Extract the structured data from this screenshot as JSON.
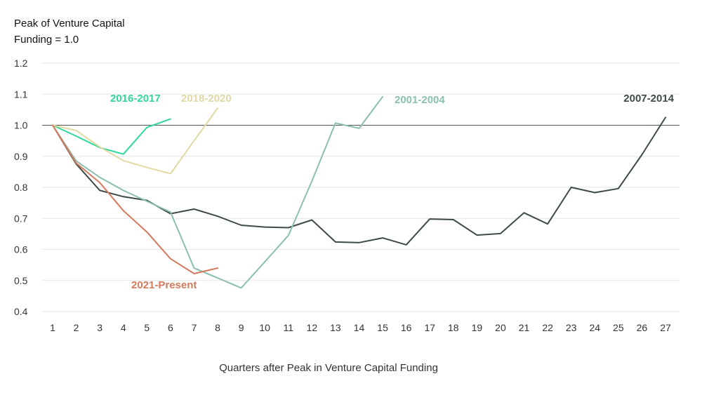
{
  "chart_data": {
    "type": "line",
    "ylabel_line1": "Peak of Venture Capital",
    "ylabel_line2": "Funding = 1.0",
    "xlabel": "Quarters after Peak in Venture Capital Funding",
    "x_ticks": [
      "1",
      "2",
      "3",
      "4",
      "5",
      "6",
      "7",
      "8",
      "9",
      "10",
      "11",
      "12",
      "13",
      "14",
      "15",
      "16",
      "17",
      "18",
      "19",
      "20",
      "21",
      "22",
      "23",
      "24",
      "25",
      "26",
      "27"
    ],
    "y_ticks": [
      "1.2",
      "1.1",
      "1.0",
      "0.9",
      "0.8",
      "0.7",
      "0.6",
      "0.5",
      "0.4"
    ],
    "ylim": [
      0.4,
      1.2
    ],
    "xlim": [
      1,
      27
    ],
    "reference_line": 1.0,
    "series": [
      {
        "name": "2007-2014",
        "color": "#3d4a48",
        "x": [
          1,
          2,
          3,
          4,
          5,
          6,
          7,
          8,
          9,
          10,
          11,
          12,
          13,
          14,
          15,
          16,
          17,
          18,
          19,
          20,
          21,
          22,
          23,
          24,
          25,
          26,
          27
        ],
        "values": [
          1.0,
          0.875,
          0.79,
          0.77,
          0.758,
          0.715,
          0.73,
          0.707,
          0.678,
          0.672,
          0.67,
          0.695,
          0.624,
          0.622,
          0.637,
          0.615,
          0.698,
          0.696,
          0.646,
          0.651,
          0.718,
          0.682,
          0.8,
          0.783,
          0.796,
          0.905,
          1.025
        ]
      },
      {
        "name": "2001-2004",
        "color": "#8bbfad",
        "x": [
          1,
          2,
          3,
          4,
          5,
          6,
          7,
          8,
          9,
          10,
          11,
          12,
          13,
          14,
          15
        ],
        "values": [
          1.0,
          0.885,
          0.832,
          0.79,
          0.755,
          0.72,
          0.54,
          0.508,
          0.476,
          0.56,
          0.645,
          0.82,
          1.007,
          0.99,
          1.092
        ]
      },
      {
        "name": "2016-2017",
        "color": "#2ed89a",
        "x": [
          1,
          2,
          3,
          4,
          5,
          6
        ],
        "values": [
          1.0,
          0.965,
          0.928,
          0.907,
          0.993,
          1.02
        ]
      },
      {
        "name": "2018-2020",
        "color": "#e2d8a4",
        "x": [
          1,
          2,
          3,
          4,
          5,
          6,
          7,
          8
        ],
        "values": [
          1.0,
          0.983,
          0.93,
          0.886,
          0.864,
          0.844,
          0.95,
          1.055
        ]
      },
      {
        "name": "2021-Present",
        "color": "#d57a5c",
        "x": [
          1,
          2,
          3,
          4,
          5,
          6,
          7,
          8
        ],
        "values": [
          1.0,
          0.878,
          0.815,
          0.725,
          0.656,
          0.57,
          0.522,
          0.54
        ]
      }
    ]
  }
}
